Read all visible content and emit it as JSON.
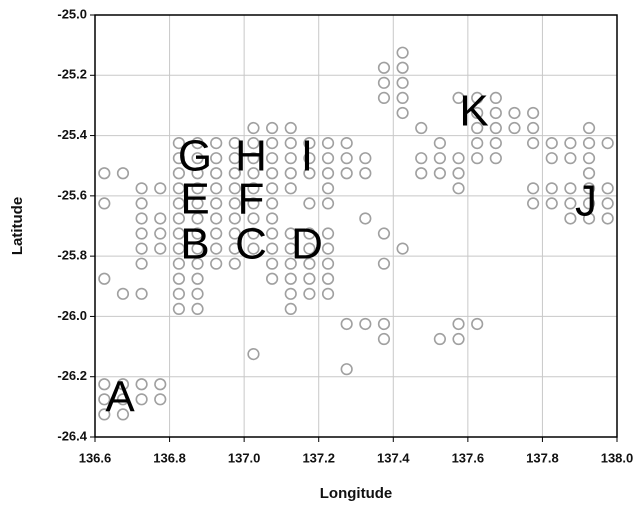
{
  "chart_data": {
    "type": "scatter",
    "xlabel": "Longitude",
    "ylabel": "Latitude",
    "xlim": [
      136.6,
      138.0
    ],
    "ylim": [
      -26.4,
      -25.0
    ],
    "xticks": [
      136.6,
      136.8,
      {
        "value": 137,
        "label": "137.0"
      },
      137.2,
      137.4,
      137.6,
      137.8,
      {
        "value": 138,
        "label": "138.0"
      }
    ],
    "yticks": [
      {
        "value": -25,
        "label": "-25.0"
      },
      -25.2,
      -25.4,
      -25.6,
      -25.8,
      {
        "value": -26,
        "label": "-26.0"
      },
      -26.2,
      -26.4
    ],
    "grid": true,
    "color": "#a0a0a0",
    "columns": [
      {
        "x": 136.625,
        "y": [
          -25.525,
          -25.625,
          -25.875,
          -26.225,
          -26.275,
          -26.325
        ]
      },
      {
        "x": 136.675,
        "y": [
          -25.525,
          -25.925,
          -26.225,
          -26.275,
          -26.325
        ]
      },
      {
        "x": 136.725,
        "y": [
          -25.575,
          -25.625,
          -25.675,
          -25.725,
          -25.775,
          -25.825,
          -25.925,
          -26.225,
          -26.275
        ]
      },
      {
        "x": 136.775,
        "y": [
          -25.575,
          -25.675,
          -25.725,
          -25.775,
          -26.225,
          -26.275
        ]
      },
      {
        "x": 136.825,
        "y": [
          -25.425,
          -25.475,
          -25.525,
          -25.575,
          -25.625,
          -25.675,
          -25.725,
          -25.775,
          -25.825,
          -25.875,
          -25.925,
          -25.975
        ]
      },
      {
        "x": 136.875,
        "y": [
          -25.425,
          -25.475,
          -25.525,
          -25.575,
          -25.625,
          -25.675,
          -25.725,
          -25.775,
          -25.825,
          -25.875,
          -25.925,
          -25.975
        ]
      },
      {
        "x": 136.925,
        "y": [
          -25.425,
          -25.475,
          -25.525,
          -25.575,
          -25.625,
          -25.675,
          -25.725,
          -25.775,
          -25.825
        ]
      },
      {
        "x": 136.975,
        "y": [
          -25.425,
          -25.475,
          -25.525,
          -25.575,
          -25.625,
          -25.675,
          -25.725,
          -25.775,
          -25.825
        ]
      },
      {
        "x": 137.025,
        "y": [
          -25.375,
          -25.425,
          -25.475,
          -25.525,
          -25.575,
          -25.625,
          -25.675,
          -25.725,
          -25.775,
          -26.125
        ]
      },
      {
        "x": 137.075,
        "y": [
          -25.375,
          -25.425,
          -25.475,
          -25.525,
          -25.575,
          -25.625,
          -25.675,
          -25.725,
          -25.775,
          -25.825,
          -25.875
        ]
      },
      {
        "x": 137.125,
        "y": [
          -25.375,
          -25.425,
          -25.475,
          -25.525,
          -25.575,
          -25.725,
          -25.775,
          -25.825,
          -25.875,
          -25.925,
          -25.975
        ]
      },
      {
        "x": 137.175,
        "y": [
          -25.425,
          -25.475,
          -25.525,
          -25.625,
          -25.725,
          -25.775,
          -25.825,
          -25.875,
          -25.925
        ]
      },
      {
        "x": 137.225,
        "y": [
          -25.425,
          -25.475,
          -25.525,
          -25.575,
          -25.625,
          -25.725,
          -25.775,
          -25.825,
          -25.875,
          -25.925
        ]
      },
      {
        "x": 137.275,
        "y": [
          -25.425,
          -25.475,
          -25.525,
          -26.025,
          -26.175
        ]
      },
      {
        "x": 137.325,
        "y": [
          -25.475,
          -25.525,
          -25.675,
          -26.025
        ]
      },
      {
        "x": 137.375,
        "y": [
          -25.175,
          -25.225,
          -25.275,
          -25.725,
          -25.825,
          -26.025,
          -26.075
        ]
      },
      {
        "x": 137.425,
        "y": [
          -25.125,
          -25.175,
          -25.225,
          -25.275,
          -25.325,
          -25.775
        ]
      },
      {
        "x": 137.475,
        "y": [
          -25.375,
          -25.475,
          -25.525
        ]
      },
      {
        "x": 137.525,
        "y": [
          -25.425,
          -25.475,
          -25.525,
          -26.075
        ]
      },
      {
        "x": 137.575,
        "y": [
          -25.275,
          -25.475,
          -25.525,
          -25.575,
          -26.025,
          -26.075
        ]
      },
      {
        "x": 137.625,
        "y": [
          -25.275,
          -25.325,
          -25.375,
          -25.425,
          -25.475,
          -26.025
        ]
      },
      {
        "x": 137.675,
        "y": [
          -25.275,
          -25.325,
          -25.375,
          -25.425,
          -25.475
        ]
      },
      {
        "x": 137.725,
        "y": [
          -25.325,
          -25.375
        ]
      },
      {
        "x": 137.775,
        "y": [
          -25.325,
          -25.375,
          -25.425,
          -25.575,
          -25.625
        ]
      },
      {
        "x": 137.825,
        "y": [
          -25.425,
          -25.475,
          -25.575,
          -25.625
        ]
      },
      {
        "x": 137.875,
        "y": [
          -25.425,
          -25.475,
          -25.575,
          -25.625,
          -25.675
        ]
      },
      {
        "x": 137.925,
        "y": [
          -25.375,
          -25.425,
          -25.475,
          -25.525,
          -25.575,
          -25.625,
          -25.675
        ]
      },
      {
        "x": 137.975,
        "y": [
          -25.425,
          -25.575,
          -25.625,
          -25.675
        ]
      }
    ],
    "annotations": [
      "A",
      "B",
      "C",
      "D",
      "E",
      "F",
      "G",
      "H",
      "I",
      "J",
      "K"
    ]
  }
}
